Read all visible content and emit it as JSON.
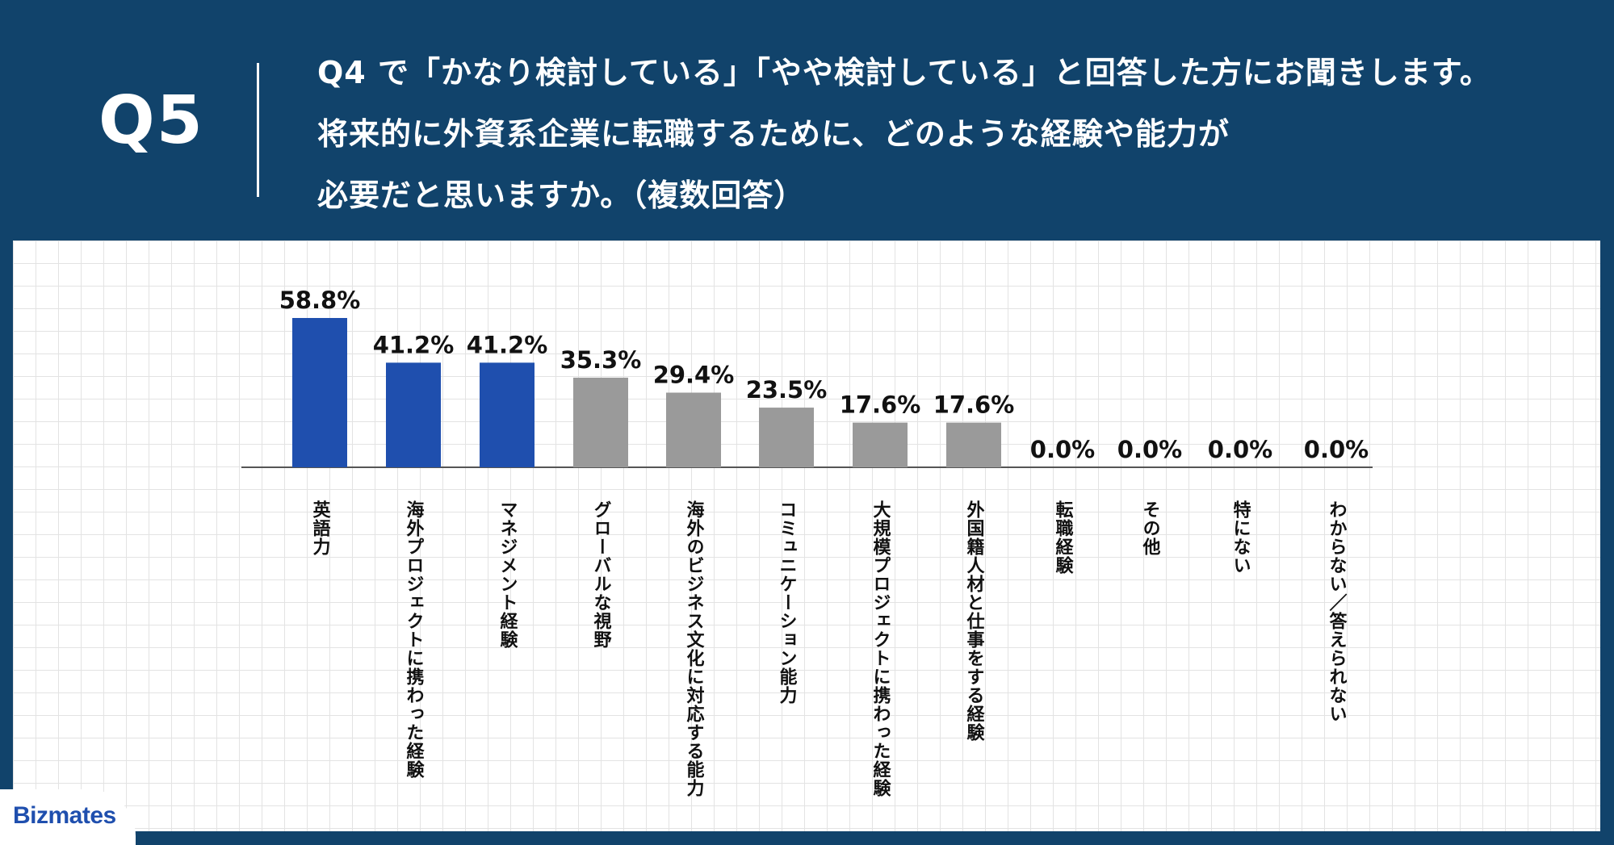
{
  "header": {
    "question_number": "Q5",
    "question_lines": [
      "Q4 で「かなり検討している」「やや検討している」と回答した方にお聞きします。",
      "将来的に外資系企業に転職するために、どのような経験や能力が",
      "必要だと思いますか。（複数回答）"
    ]
  },
  "brand": {
    "name": "Bizmates"
  },
  "colors": {
    "header_bg": "#11436b",
    "highlight_bar": "#1f4fae",
    "normal_bar": "#9a9a9a",
    "axis": "#555555",
    "label_text": "#111111"
  },
  "chart_data": {
    "type": "bar",
    "title": "",
    "xlabel": "",
    "ylabel": "",
    "ylim": [
      0,
      60
    ],
    "grid": false,
    "value_format": "percent_one_decimal",
    "categories": [
      "英語力",
      "海外プロジェクトに携わった経験",
      "マネジメント経験",
      "グローバルな視野",
      "海外のビジネス文化に対応する能力",
      "コミュニケーション能力",
      "大規模プロジェクトに携わった経験",
      "外国籍人材と仕事をする経験",
      "転職経験",
      "その他",
      "特にない",
      "わからない／答えられない"
    ],
    "values": [
      58.8,
      41.2,
      41.2,
      35.3,
      29.4,
      23.5,
      17.6,
      17.6,
      0.0,
      0.0,
      0.0,
      0.0
    ],
    "value_labels": [
      "58.8%",
      "41.2%",
      "41.2%",
      "35.3%",
      "29.4%",
      "23.5%",
      "17.6%",
      "17.6%",
      "0.0%",
      "0.0%",
      "0.0%",
      "0.0%"
    ],
    "highlighted": [
      true,
      true,
      true,
      false,
      false,
      false,
      false,
      false,
      false,
      false,
      false,
      false
    ]
  }
}
